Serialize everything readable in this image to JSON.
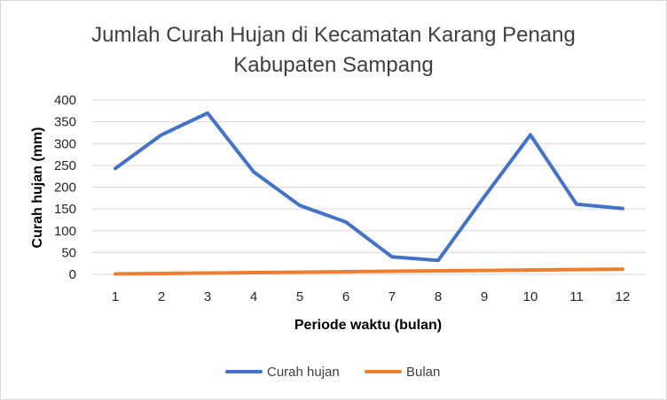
{
  "chart_data": {
    "type": "line",
    "title_lines": [
      "Jumlah Curah Hujan di Kecamatan Karang Penang",
      "Kabupaten Sampang"
    ],
    "xlabel": "Periode waktu (bulan)",
    "ylabel": "Curah hujan (mm)",
    "ylim": [
      0,
      400
    ],
    "yticks": [
      0,
      50,
      100,
      150,
      200,
      250,
      300,
      350,
      400
    ],
    "grid": true,
    "legend_position": "bottom",
    "categories": [
      "1",
      "2",
      "3",
      "4",
      "5",
      "6",
      "7",
      "8",
      "9",
      "10",
      "11",
      "12"
    ],
    "series": [
      {
        "name": "Curah hujan",
        "color": "#4472c4",
        "values": [
          243,
          320,
          370,
          235,
          158,
          120,
          40,
          32,
          178,
          320,
          161,
          151
        ]
      },
      {
        "name": "Bulan",
        "color": "#ed7d31",
        "values": [
          1,
          2,
          3,
          4,
          5,
          6,
          7,
          8,
          9,
          10,
          11,
          12
        ]
      }
    ]
  }
}
